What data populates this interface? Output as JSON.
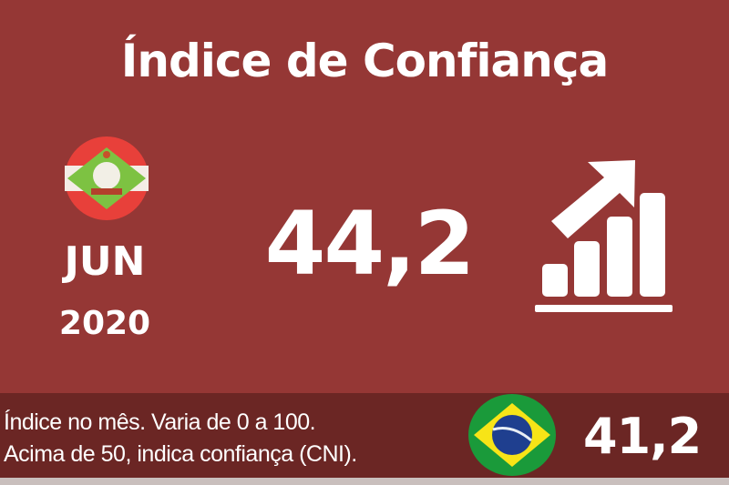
{
  "header": {
    "title": "Índice de Confiança"
  },
  "period": {
    "month": "JUN",
    "year": "2020"
  },
  "state_index": {
    "value": "44,2",
    "flag_icon": "santa-catarina-flag-icon"
  },
  "trend_icon": "bar-chart-growth-icon",
  "footer": {
    "line1": "Índice no mês. Varia de 0 a 100.",
    "line2": "Acima de 50, indica confiança (CNI).",
    "national_value": "41,2",
    "flag_icon": "brazil-flag-icon"
  },
  "colors": {
    "background": "#953735",
    "band": "#6b2624",
    "text": "#ffffff"
  }
}
